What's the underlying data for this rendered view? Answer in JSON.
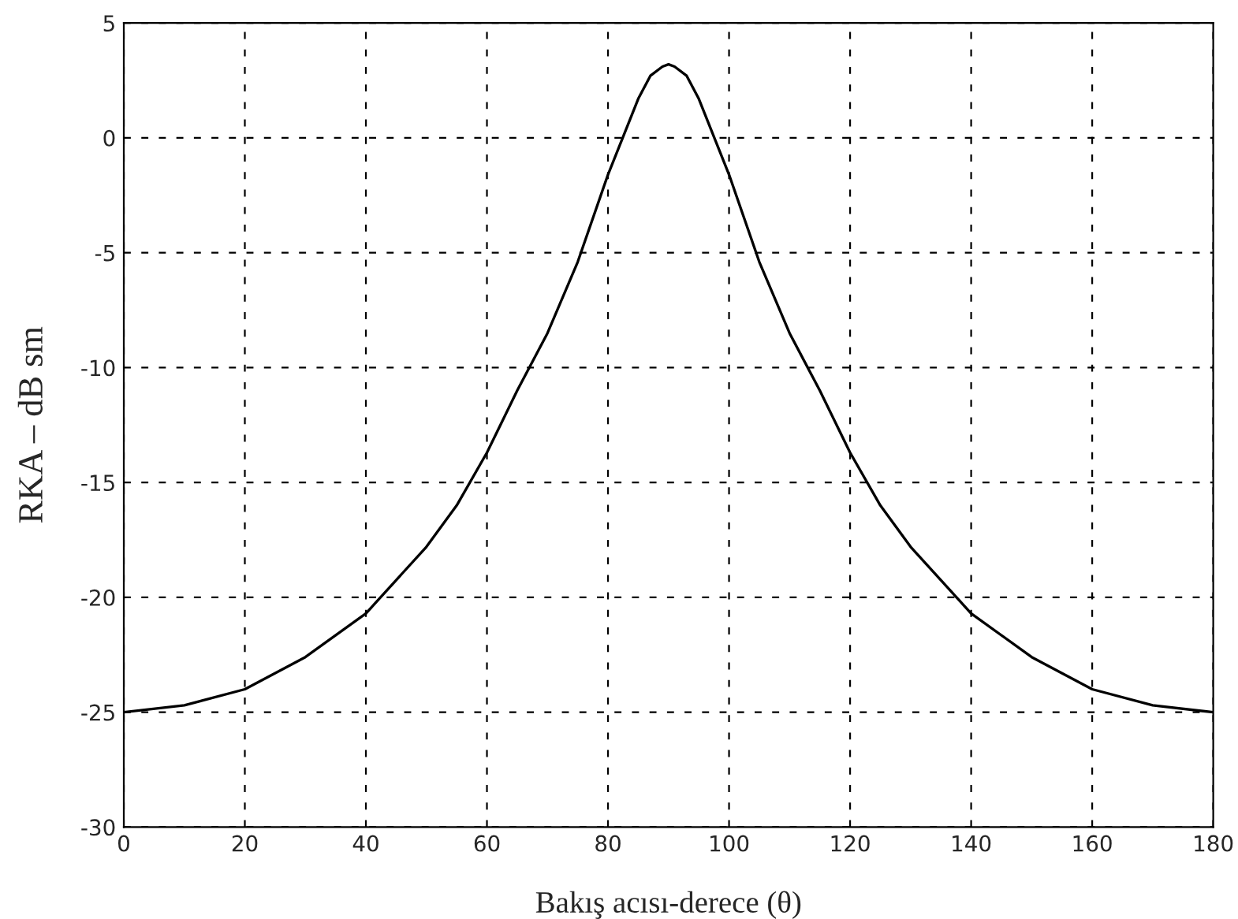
{
  "chart_data": {
    "type": "line",
    "xlabel": "Bakış acısı-derece (θ)",
    "ylabel": "RKA – dB sm",
    "x": [
      0,
      10,
      20,
      30,
      40,
      50,
      55,
      60,
      65,
      70,
      75,
      80,
      85,
      87,
      89,
      90,
      91,
      93,
      95,
      100,
      105,
      110,
      115,
      120,
      125,
      130,
      140,
      150,
      160,
      170,
      180
    ],
    "series": [
      {
        "color": "#000000",
        "values": [
          -25,
          -24.7,
          -24,
          -22.6,
          -20.7,
          -17.8,
          -16,
          -13.7,
          -11,
          -8.5,
          -5.4,
          -1.6,
          1.7,
          2.7,
          3.1,
          3.2,
          3.1,
          2.7,
          1.7,
          -1.6,
          -5.4,
          -8.5,
          -11,
          -13.7,
          -16,
          -17.8,
          -20.7,
          -22.6,
          -24,
          -24.7,
          -25
        ]
      }
    ],
    "xlim": [
      0,
      180
    ],
    "ylim": [
      -30,
      5
    ],
    "xticks": [
      0,
      20,
      40,
      60,
      80,
      100,
      120,
      140,
      160,
      180
    ],
    "yticks": [
      -30,
      -25,
      -20,
      -15,
      -10,
      -5,
      0,
      5
    ],
    "grid": true,
    "line_style": "solid",
    "marker": "none"
  }
}
